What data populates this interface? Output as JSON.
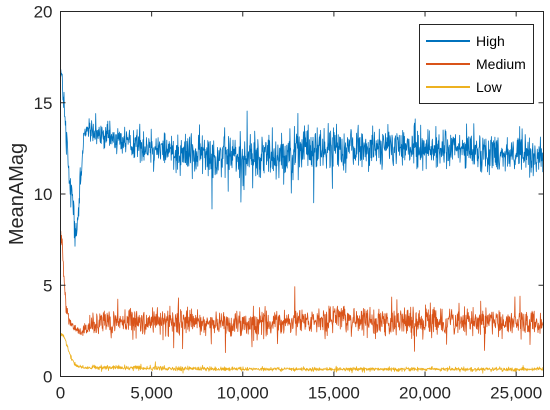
{
  "chart_data": {
    "type": "line",
    "title": "",
    "xlabel": "",
    "ylabel": "MeanAMag",
    "xlim": [
      0,
      26500
    ],
    "ylim": [
      0,
      20
    ],
    "x_ticks": [
      0,
      5000,
      10000,
      15000,
      20000,
      25000
    ],
    "x_tick_labels": [
      "0",
      "5,000",
      "10,000",
      "15,000",
      "20,000",
      "25,000"
    ],
    "y_ticks": [
      0,
      5,
      10,
      15,
      20
    ],
    "y_tick_labels": [
      "0",
      "5",
      "10",
      "15",
      "20"
    ],
    "legend_position": "top-right",
    "grid": false,
    "series": [
      {
        "name": "High",
        "color": "#0072BD",
        "x": [
          0,
          150,
          300,
          500,
          700,
          900,
          1100,
          1300,
          1500,
          2000,
          3000,
          5000,
          7500,
          10000,
          12500,
          15000,
          17500,
          20000,
          22500,
          25000,
          26500
        ],
        "values": [
          17,
          15.5,
          13,
          10.5,
          9.5,
          8,
          10.5,
          13.5,
          13.5,
          13.2,
          13,
          12.6,
          12.2,
          12,
          12.3,
          12.5,
          12.6,
          12.5,
          12.4,
          12.2,
          12
        ],
        "noise": [
          1,
          1.5,
          2,
          2.5,
          2.5,
          2,
          2,
          0.8,
          0.8,
          1,
          1.2,
          1.5,
          1.8,
          2,
          1.9,
          1.8,
          1.6,
          1.6,
          1.5,
          1.5,
          1.5
        ]
      },
      {
        "name": "Medium",
        "color": "#D95319",
        "x": [
          0,
          100,
          200,
          300,
          500,
          700,
          1000,
          1500,
          2000,
          3000,
          5000,
          7500,
          10000,
          12500,
          15000,
          17500,
          20000,
          22500,
          25000,
          26500
        ],
        "values": [
          8,
          7,
          5.5,
          4,
          3,
          2.7,
          2.5,
          2.6,
          2.8,
          3,
          3,
          3,
          2.9,
          3,
          3.1,
          3,
          3,
          3,
          2.9,
          2.9
        ],
        "noise": [
          0.8,
          0.8,
          0.7,
          0.6,
          0.4,
          0.3,
          0.3,
          0.8,
          1,
          1.2,
          1.1,
          1.1,
          1.1,
          1.1,
          1.2,
          1.1,
          1.1,
          1.1,
          1,
          1
        ]
      },
      {
        "name": "Low",
        "color": "#EDB120",
        "x": [
          0,
          200,
          500,
          800,
          1200,
          2000,
          5000,
          10000,
          15000,
          20000,
          25000,
          26500
        ],
        "values": [
          2.3,
          2.2,
          1.2,
          0.6,
          0.5,
          0.5,
          0.45,
          0.4,
          0.4,
          0.4,
          0.4,
          0.4
        ],
        "noise": [
          0.15,
          0.15,
          0.2,
          0.15,
          0.15,
          0.2,
          0.2,
          0.15,
          0.15,
          0.15,
          0.15,
          0.15
        ]
      }
    ]
  }
}
